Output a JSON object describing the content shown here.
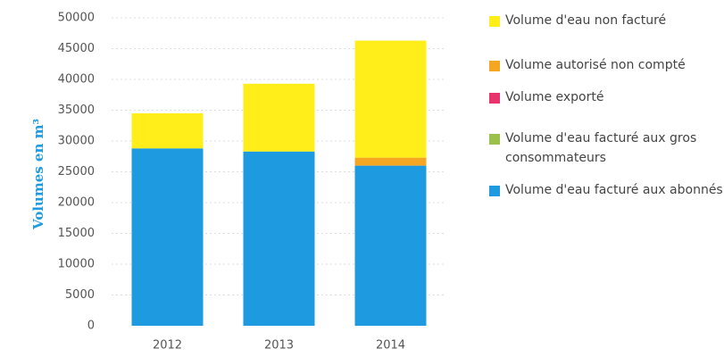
{
  "chart_data": {
    "type": "stacked_bar",
    "y_label": "Volumes en m³",
    "categories": [
      "2012",
      "2013",
      "2014"
    ],
    "series": [
      {
        "name": "Volume d'eau facturé aux abonnés",
        "color": "#1e9be0",
        "values": [
          28800,
          28300,
          26000
        ]
      },
      {
        "name": "Volume d'eau facturé aux gros consommateurs",
        "color": "#9bc14a",
        "values": [
          0,
          0,
          0
        ]
      },
      {
        "name": "Volume exporté",
        "color": "#e8336d",
        "values": [
          0,
          0,
          0
        ]
      },
      {
        "name": "Volume autorisé non compté",
        "color": "#f5a623",
        "values": [
          0,
          0,
          1300
        ]
      },
      {
        "name": "Volume d'eau non facturé",
        "color": "#ffee1a",
        "values": [
          5700,
          11000,
          19000
        ]
      }
    ],
    "ylim": [
      0,
      50000
    ],
    "yticks": [
      0,
      5000,
      10000,
      15000,
      20000,
      25000,
      30000,
      35000,
      40000,
      45000,
      50000
    ],
    "grid": true
  }
}
